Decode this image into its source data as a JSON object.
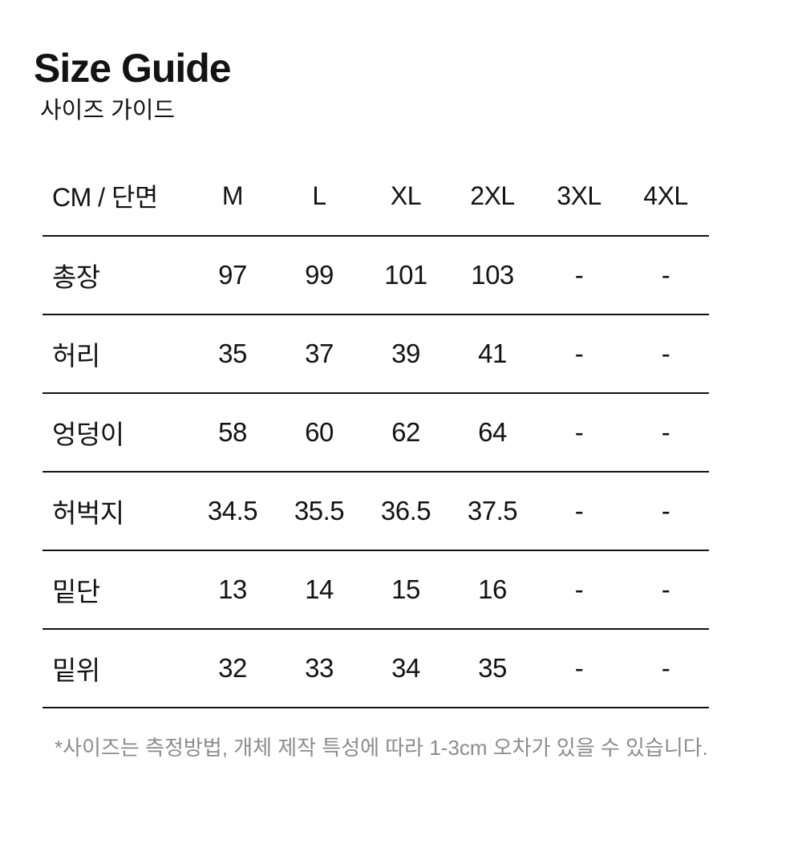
{
  "header": {
    "title": "Size Guide",
    "subtitle": "사이즈 가이드"
  },
  "chart_data": {
    "type": "table",
    "title": "Size Guide",
    "columns": [
      "CM / 단면",
      "M",
      "L",
      "XL",
      "2XL",
      "3XL",
      "4XL"
    ],
    "rows": [
      {
        "label": "총장",
        "values": [
          "97",
          "99",
          "101",
          "103",
          "-",
          "-"
        ]
      },
      {
        "label": "허리",
        "values": [
          "35",
          "37",
          "39",
          "41",
          "-",
          "-"
        ]
      },
      {
        "label": "엉덩이",
        "values": [
          "58",
          "60",
          "62",
          "64",
          "-",
          "-"
        ]
      },
      {
        "label": "허벅지",
        "values": [
          "34.5",
          "35.5",
          "36.5",
          "37.5",
          "-",
          "-"
        ]
      },
      {
        "label": "밑단",
        "values": [
          "13",
          "14",
          "15",
          "16",
          "-",
          "-"
        ]
      },
      {
        "label": "밑위",
        "values": [
          "32",
          "33",
          "34",
          "35",
          "-",
          "-"
        ]
      }
    ]
  },
  "footnote": {
    "text": "*사이즈는 측정방법, 개체 제작 특성에 따라 1-3cm 오차가 있을 수 있습니다."
  },
  "colors": {
    "text": "#131313",
    "divider": "#131313",
    "footnote_text": "#8c8c8c",
    "background": "#ffffff"
  }
}
